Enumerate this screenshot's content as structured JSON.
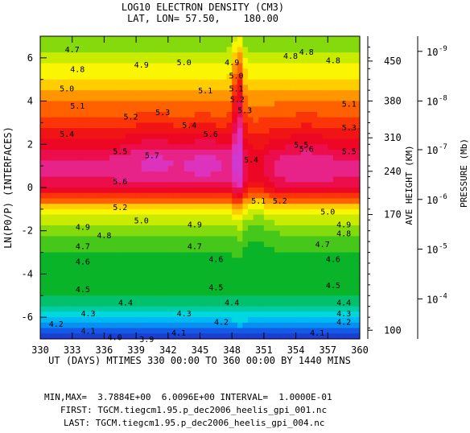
{
  "chart_data": {
    "type": "heatmap",
    "title": "LOG10 ELECTRON DENSITY (CM3)",
    "subtitle": "LAT, LON= 57.50,    180.00",
    "xlabel": "UT (DAYS) MTIMES 330 00:00 TO 360 00:00 BY 1440 MINS",
    "ylabel": "LN(P0/P) (INTERFACES)",
    "right_label_1": "AVE HEIGHT (KM)",
    "right_label_2": "PRESSURE (Mb)",
    "xlim": [
      330,
      360
    ],
    "ylim": [
      -7,
      7
    ],
    "x_ticks": [
      "330",
      "333",
      "336",
      "339",
      "342",
      "345",
      "348",
      "351",
      "354",
      "357",
      "360"
    ],
    "y_ticks": [
      "-6",
      "-4",
      "-2",
      "0",
      "2",
      "4",
      "6"
    ],
    "height_ticks": [
      {
        "label": "450",
        "y": 5.85
      },
      {
        "label": "380",
        "y": 4.0
      },
      {
        "label": "310",
        "y": 2.3
      },
      {
        "label": "240",
        "y": 0.75
      },
      {
        "label": "170",
        "y": -1.25
      },
      {
        "label": "100",
        "y": -6.6
      }
    ],
    "pressure_ticks": [
      {
        "label": "10",
        "exp": "-9",
        "y": 6.3
      },
      {
        "label": "10",
        "exp": "-8",
        "y": 4.0
      },
      {
        "label": "10",
        "exp": "-7",
        "y": 1.75
      },
      {
        "label": "10",
        "exp": "-6",
        "y": -0.55
      },
      {
        "label": "10",
        "exp": "-5",
        "y": -2.85
      },
      {
        "label": "10",
        "exp": "-4",
        "y": -5.15
      }
    ],
    "contour_min": 3.9,
    "contour_max": 6.0,
    "contour_interval": 0.1,
    "mean_profile": [
      {
        "y": -7.0,
        "v": 3.8
      },
      {
        "y": -6.5,
        "v": 4.05
      },
      {
        "y": -6.0,
        "v": 4.25
      },
      {
        "y": -5.5,
        "v": 4.4
      },
      {
        "y": -5.0,
        "v": 4.5
      },
      {
        "y": -4.0,
        "v": 4.54
      },
      {
        "y": -3.0,
        "v": 4.59
      },
      {
        "y": -2.5,
        "v": 4.65
      },
      {
        "y": -2.0,
        "v": 4.72
      },
      {
        "y": -1.5,
        "v": 4.85
      },
      {
        "y": -1.0,
        "v": 5.02
      },
      {
        "y": -0.5,
        "v": 5.3
      },
      {
        "y": 0.0,
        "v": 5.62
      },
      {
        "y": 0.5,
        "v": 5.72
      },
      {
        "y": 1.0,
        "v": 5.73
      },
      {
        "y": 1.5,
        "v": 5.68
      },
      {
        "y": 2.0,
        "v": 5.55
      },
      {
        "y": 2.5,
        "v": 5.45
      },
      {
        "y": 3.0,
        "v": 5.35
      },
      {
        "y": 3.5,
        "v": 5.27
      },
      {
        "y": 4.0,
        "v": 5.18
      },
      {
        "y": 4.5,
        "v": 5.1
      },
      {
        "y": 5.0,
        "v": 5.02
      },
      {
        "y": 5.5,
        "v": 4.93
      },
      {
        "y": 6.0,
        "v": 4.85
      },
      {
        "y": 7.0,
        "v": 4.7
      }
    ],
    "contour_labels": [
      {
        "text": "4.7",
        "x": 333.0,
        "y": 6.4
      },
      {
        "text": "4.8",
        "x": 333.5,
        "y": 5.5
      },
      {
        "text": "4.9",
        "x": 339.5,
        "y": 5.7
      },
      {
        "text": "5.0",
        "x": 343.5,
        "y": 5.8
      },
      {
        "text": "4.8",
        "x": 355.0,
        "y": 6.3
      },
      {
        "text": "4.8",
        "x": 357.5,
        "y": 5.9
      },
      {
        "text": "5.0",
        "x": 332.5,
        "y": 4.6
      },
      {
        "text": "5.1",
        "x": 345.5,
        "y": 4.5
      },
      {
        "text": "5.1",
        "x": 333.5,
        "y": 3.8
      },
      {
        "text": "5.1",
        "x": 359.0,
        "y": 3.9
      },
      {
        "text": "5.2",
        "x": 338.5,
        "y": 3.3
      },
      {
        "text": "5.3",
        "x": 341.5,
        "y": 3.5
      },
      {
        "text": "5.4",
        "x": 344.0,
        "y": 2.9
      },
      {
        "text": "5.3",
        "x": 359.0,
        "y": 2.8
      },
      {
        "text": "5.4",
        "x": 332.5,
        "y": 2.5
      },
      {
        "text": "5.6",
        "x": 346.0,
        "y": 2.5
      },
      {
        "text": "5.5",
        "x": 337.5,
        "y": 1.7
      },
      {
        "text": "5.5",
        "x": 359.0,
        "y": 1.7
      },
      {
        "text": "5.7",
        "x": 340.5,
        "y": 1.5
      },
      {
        "text": "5.6",
        "x": 355.0,
        "y": 1.8
      },
      {
        "text": "5.6",
        "x": 337.5,
        "y": 0.3
      },
      {
        "text": "5.4",
        "x": 349.8,
        "y": 1.3
      },
      {
        "text": "5.1",
        "x": 350.5,
        "y": -0.6
      },
      {
        "text": "5.2",
        "x": 352.5,
        "y": -0.6
      },
      {
        "text": "5.2",
        "x": 337.5,
        "y": -0.9
      },
      {
        "text": "5.0",
        "x": 357.0,
        "y": -1.1
      },
      {
        "text": "5.0",
        "x": 339.5,
        "y": -1.5
      },
      {
        "text": "4.9",
        "x": 344.5,
        "y": -1.7
      },
      {
        "text": "4.9",
        "x": 334.0,
        "y": -1.8
      },
      {
        "text": "4.9",
        "x": 358.5,
        "y": -1.7
      },
      {
        "text": "4.8",
        "x": 336.0,
        "y": -2.2
      },
      {
        "text": "4.8",
        "x": 358.5,
        "y": -2.1
      },
      {
        "text": "4.7",
        "x": 334.0,
        "y": -2.7
      },
      {
        "text": "4.7",
        "x": 344.5,
        "y": -2.7
      },
      {
        "text": "4.7",
        "x": 356.5,
        "y": -2.6
      },
      {
        "text": "4.6",
        "x": 334.0,
        "y": -3.4
      },
      {
        "text": "4.6",
        "x": 346.5,
        "y": -3.3
      },
      {
        "text": "4.6",
        "x": 357.5,
        "y": -3.3
      },
      {
        "text": "4.5",
        "x": 334.0,
        "y": -4.7
      },
      {
        "text": "4.5",
        "x": 346.5,
        "y": -4.6
      },
      {
        "text": "4.5",
        "x": 357.5,
        "y": -4.5
      },
      {
        "text": "4.4",
        "x": 338.0,
        "y": -5.3
      },
      {
        "text": "4.4",
        "x": 348.0,
        "y": -5.3
      },
      {
        "text": "4.4",
        "x": 358.5,
        "y": -5.3
      },
      {
        "text": "4.3",
        "x": 334.5,
        "y": -5.8
      },
      {
        "text": "4.3",
        "x": 343.5,
        "y": -5.8
      },
      {
        "text": "4.3",
        "x": 358.5,
        "y": -5.8
      },
      {
        "text": "4.2",
        "x": 331.5,
        "y": -6.3
      },
      {
        "text": "4.2",
        "x": 347.0,
        "y": -6.2
      },
      {
        "text": "4.2",
        "x": 358.5,
        "y": -6.2
      },
      {
        "text": "4.1",
        "x": 334.5,
        "y": -6.6
      },
      {
        "text": "4.1",
        "x": 343.0,
        "y": -6.7
      },
      {
        "text": "4.1",
        "x": 356.0,
        "y": -6.7
      },
      {
        "text": "4.0",
        "x": 337.0,
        "y": -6.9
      },
      {
        "text": "3.9",
        "x": 340.0,
        "y": -7.0
      },
      {
        "text": "5.0",
        "x": 348.4,
        "y": 5.2
      },
      {
        "text": "5.1",
        "x": 348.4,
        "y": 4.6
      },
      {
        "text": "5.2",
        "x": 348.5,
        "y": 4.1
      },
      {
        "text": "4.8",
        "x": 353.5,
        "y": 6.1
      },
      {
        "text": "4.9",
        "x": 348.0,
        "y": 5.8
      },
      {
        "text": "5.3",
        "x": 349.2,
        "y": 3.6
      },
      {
        "text": "5.5",
        "x": 354.5,
        "y": 2.0
      }
    ]
  },
  "info": {
    "minmax_line": "MIN,MAX=  3.7884E+00  6.0096E+00 INTERVAL=  1.0000E-01",
    "first_line": "FIRST: TGCM.tiegcm1.95.p_dec2006_heelis_gpi_001.nc",
    "last_line": "LAST: TGCM.tiegcm1.95.p_dec2006_heelis_gpi_004.nc"
  }
}
